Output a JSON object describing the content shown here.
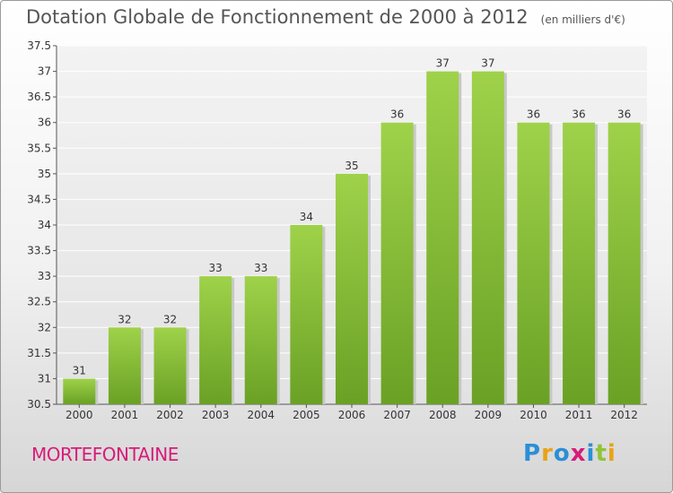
{
  "title": "Dotation Globale de Fonctionnement de 2000 à 2012",
  "unit": "(en milliers d'€)",
  "commune": "MORTEFONTAINE",
  "logo": {
    "letters": [
      "P",
      "r",
      "o",
      "x",
      "i",
      "t",
      "i"
    ],
    "colors": [
      "#2a8fd6",
      "#e8a317",
      "#2a8fd6",
      "#d81c7a",
      "#2a8fd6",
      "#8fc43a",
      "#e8a317"
    ]
  },
  "colors": {
    "bar": "#8fc43a",
    "bar_dark": "#6ea52a"
  },
  "chart_data": {
    "type": "bar",
    "categories": [
      "2000",
      "2001",
      "2002",
      "2003",
      "2004",
      "2005",
      "2006",
      "2007",
      "2008",
      "2009",
      "2010",
      "2011",
      "2012"
    ],
    "values": [
      31,
      32,
      32,
      33,
      33,
      34,
      35,
      36,
      37,
      37,
      36,
      36,
      36
    ],
    "data_labels": [
      "31",
      "32",
      "32",
      "33",
      "33",
      "34",
      "35",
      "36",
      "37",
      "37",
      "36",
      "36",
      "36"
    ],
    "y_ticks": [
      "30.5",
      "31",
      "31.5",
      "32",
      "32.5",
      "33",
      "33.5",
      "34",
      "34.5",
      "35",
      "35.5",
      "36",
      "36.5",
      "37",
      "37.5"
    ],
    "ylim": [
      30.5,
      37.5
    ],
    "grid": true,
    "legend": "none"
  }
}
